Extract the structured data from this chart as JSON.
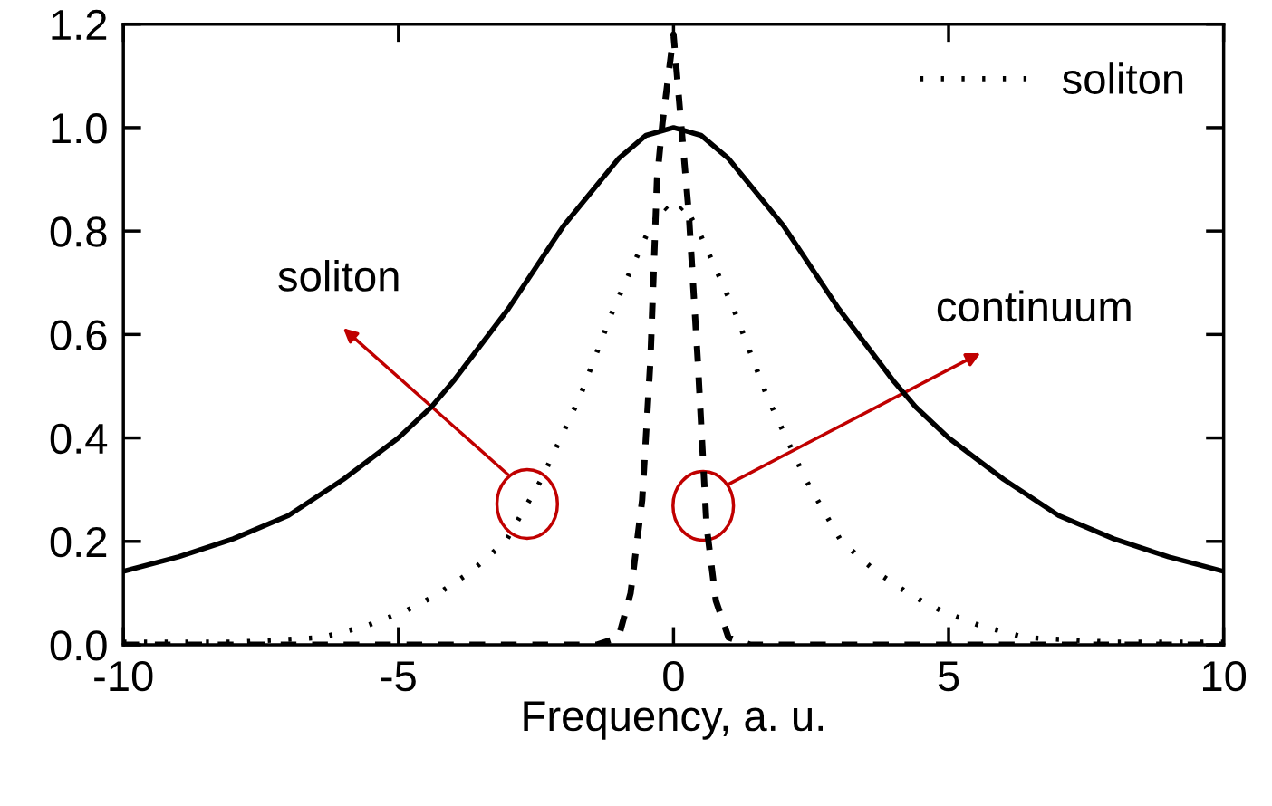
{
  "chart_data": {
    "type": "line",
    "xlabel": "Frequency, a. u.",
    "xlim": [
      -10,
      10
    ],
    "ylim": [
      0,
      1.2
    ],
    "xticks": [
      -10,
      -5,
      0,
      5,
      10
    ],
    "yticks": [
      {
        "value": 0,
        "label": "0.0"
      },
      {
        "value": 0.2,
        "label": "0.2"
      },
      {
        "value": 0.4,
        "label": "0.4"
      },
      {
        "value": 0.6,
        "label": "0.6"
      },
      {
        "value": 0.8,
        "label": "0.8"
      },
      {
        "value": 1.0,
        "label": "1.0"
      },
      {
        "value": 1.2,
        "label": "1.2"
      }
    ],
    "grid": false,
    "legend": "top right",
    "series": [
      {
        "color": "#000000",
        "line_style": "solid",
        "x": [
          -10,
          -9,
          -8,
          -7,
          -6,
          -5,
          -4.4,
          -4,
          -3,
          -2,
          -1,
          -0.5,
          0,
          0.5,
          1,
          2,
          3,
          4,
          4.4,
          5,
          6,
          7,
          8,
          9,
          10
        ],
        "values": [
          0.142,
          0.17,
          0.205,
          0.25,
          0.32,
          0.4,
          0.46,
          0.51,
          0.65,
          0.81,
          0.94,
          0.985,
          1.0,
          0.985,
          0.94,
          0.81,
          0.65,
          0.51,
          0.46,
          0.4,
          0.32,
          0.25,
          0.205,
          0.17,
          0.142
        ]
      },
      {
        "name": "soliton",
        "color": "#000000",
        "line_style": "dotted",
        "x": [
          -10,
          -8,
          -6.4,
          -5.6,
          -4.9,
          -4.35,
          -3.7,
          -3.05,
          -2.4,
          -1.7,
          -1.09,
          -0.5,
          -0.2,
          0,
          0.2,
          0.5,
          1.09,
          1.7,
          2.4,
          3.05,
          3.7,
          4.35,
          4.9,
          5.6,
          6.4,
          8,
          10
        ],
        "values": [
          0.005,
          0.005,
          0.014,
          0.036,
          0.064,
          0.094,
          0.14,
          0.2,
          0.32,
          0.48,
          0.65,
          0.79,
          0.85,
          0.83,
          0.85,
          0.79,
          0.65,
          0.48,
          0.32,
          0.2,
          0.14,
          0.094,
          0.064,
          0.036,
          0.014,
          0.005,
          0.005
        ]
      },
      {
        "color": "#000000",
        "line_style": "dashed",
        "x": [
          -10,
          -1.4,
          -1.0,
          -0.78,
          -0.57,
          -0.42,
          -0.3,
          -0.2,
          0,
          0.28,
          0.44,
          0.6,
          0.77,
          1.0,
          1.4,
          10
        ],
        "values": [
          0,
          0,
          0.014,
          0.1,
          0.28,
          0.55,
          0.9,
          1.01,
          1.18,
          0.83,
          0.55,
          0.23,
          0.085,
          0.014,
          0,
          0
        ]
      }
    ],
    "annotations": [
      "soliton",
      "continuum"
    ]
  }
}
